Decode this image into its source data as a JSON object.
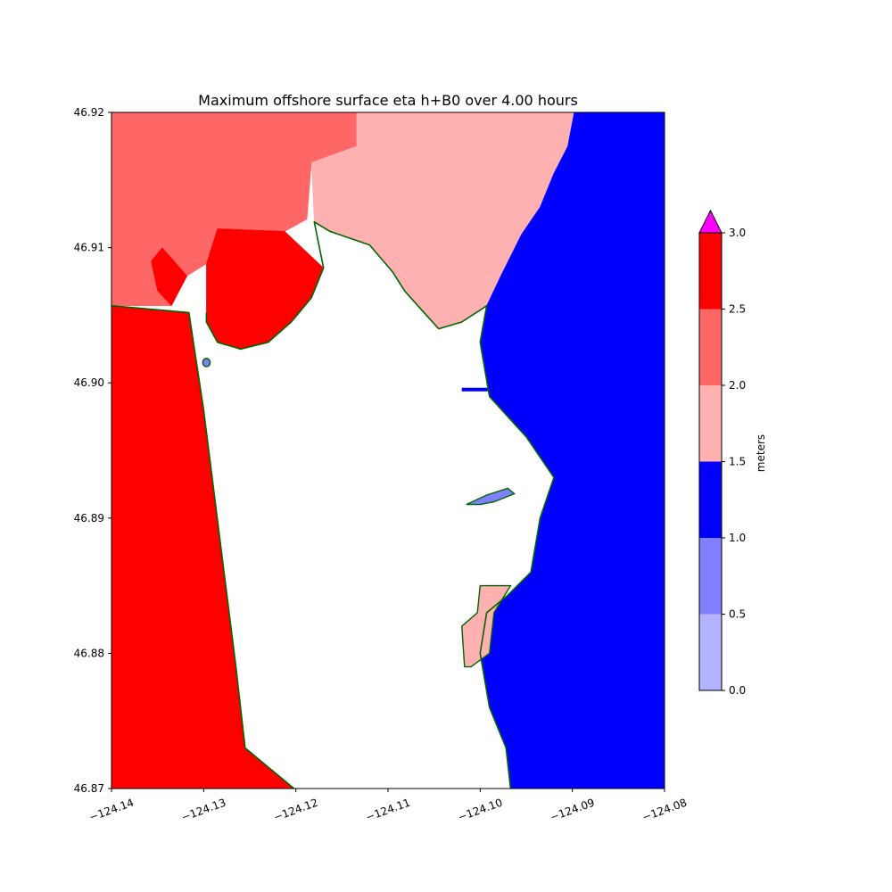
{
  "chart_data": {
    "type": "heatmap",
    "title": "Maximum offshore surface eta h+B0 over 4.00 hours",
    "xlabel": "",
    "ylabel": "",
    "xlim": [
      -124.14,
      -124.08
    ],
    "ylim": [
      46.87,
      46.92
    ],
    "x_ticks": [
      -124.14,
      -124.13,
      -124.12,
      -124.11,
      -124.1,
      -124.09,
      -124.08
    ],
    "x_tick_labels": [
      "−124.14",
      "−124.13",
      "−124.12",
      "−124.11",
      "−124.10",
      "−124.09",
      "−124.08"
    ],
    "y_ticks": [
      46.87,
      46.88,
      46.89,
      46.9,
      46.91,
      46.92
    ],
    "y_tick_labels": [
      "46.87",
      "46.88",
      "46.89",
      "46.90",
      "46.91",
      "46.92"
    ],
    "colorbar": {
      "label": "meters",
      "levels": [
        0.0,
        0.5,
        1.0,
        1.5,
        2.0,
        2.5,
        3.0
      ],
      "level_labels": [
        "0.0",
        "0.5",
        "1.0",
        "1.5",
        "2.0",
        "2.5",
        "3.0"
      ],
      "colors": [
        "#b3b3ff",
        "#8080ff",
        "#0000ff",
        "#ffb0b0",
        "#ff6666",
        "#ff0000"
      ],
      "extend_max_color": "#ff00ff"
    },
    "shoreline_color": "#006400",
    "regions": [
      {
        "class": "2.0-2.5",
        "color": "#ff6666",
        "polygon": [
          [
            -124.14,
            46.92
          ],
          [
            -124.1134,
            46.92
          ],
          [
            -124.1134,
            46.9175
          ],
          [
            -124.1183,
            46.9163
          ],
          [
            -124.1188,
            46.9121
          ],
          [
            -124.1212,
            46.9112
          ],
          [
            -124.1285,
            46.9114
          ],
          [
            -124.1297,
            46.9088
          ],
          [
            -124.1318,
            46.9079
          ],
          [
            -124.1335,
            46.9057
          ],
          [
            -124.14,
            46.9057
          ]
        ]
      },
      {
        "class": "1.5-2.0",
        "color": "#ffb0b0",
        "polygon": [
          [
            -124.1134,
            46.92
          ],
          [
            -124.0898,
            46.92
          ],
          [
            -124.0905,
            46.9175
          ],
          [
            -124.092,
            46.9155
          ],
          [
            -124.0935,
            46.913
          ],
          [
            -124.0955,
            46.911
          ],
          [
            -124.0977,
            46.908
          ],
          [
            -124.0993,
            46.9057
          ],
          [
            -124.102,
            46.9045
          ],
          [
            -124.1045,
            46.904
          ],
          [
            -124.1065,
            46.9055
          ],
          [
            -124.1082,
            46.9068
          ],
          [
            -124.1095,
            46.9082
          ],
          [
            -124.112,
            46.9102
          ],
          [
            -124.1163,
            46.9112
          ],
          [
            -124.118,
            46.9119
          ],
          [
            -124.1183,
            46.9163
          ],
          [
            -124.1134,
            46.9175
          ]
        ]
      },
      {
        "class": "2.5-3.0",
        "color": "#ff0000",
        "polygon": [
          [
            -124.1297,
            46.9088
          ],
          [
            -124.1285,
            46.9114
          ],
          [
            -124.1212,
            46.9112
          ],
          [
            -124.117,
            46.9085
          ],
          [
            -124.1183,
            46.9063
          ],
          [
            -124.1205,
            46.9045
          ],
          [
            -124.123,
            46.903
          ],
          [
            -124.126,
            46.9025
          ],
          [
            -124.1285,
            46.903
          ],
          [
            -124.1297,
            46.9045
          ]
        ]
      },
      {
        "class": "2.5-3.0",
        "color": "#ff0000",
        "polygon": [
          [
            -124.1332,
            46.909
          ],
          [
            -124.1318,
            46.9079
          ],
          [
            -124.1335,
            46.9057
          ],
          [
            -124.135,
            46.9068
          ],
          [
            -124.1357,
            46.909
          ],
          [
            -124.1345,
            46.91
          ]
        ]
      },
      {
        "class": "2.5-3.0",
        "color": "#ff0000",
        "polygon": [
          [
            -124.14,
            46.9057
          ],
          [
            -124.1316,
            46.9052
          ],
          [
            -124.13,
            46.898
          ],
          [
            -124.1265,
            46.879
          ],
          [
            -124.1255,
            46.873
          ],
          [
            -124.1202,
            46.87
          ],
          [
            -124.14,
            46.87
          ]
        ]
      },
      {
        "class": "1.0-1.5",
        "color": "#0000ff",
        "polygon": [
          [
            -124.0898,
            46.92
          ],
          [
            -124.08,
            46.92
          ],
          [
            -124.08,
            46.87
          ],
          [
            -124.0967,
            46.87
          ],
          [
            -124.0972,
            46.873
          ],
          [
            -124.099,
            46.876
          ],
          [
            -124.1,
            46.88
          ],
          [
            -124.0993,
            46.883
          ],
          [
            -124.097,
            46.8843
          ],
          [
            -124.0945,
            46.886
          ],
          [
            -124.0935,
            46.89
          ],
          [
            -124.092,
            46.893
          ],
          [
            -124.095,
            46.896
          ],
          [
            -124.099,
            46.899
          ],
          [
            -124.1,
            46.903
          ],
          [
            -124.0993,
            46.9057
          ],
          [
            -124.0977,
            46.908
          ],
          [
            -124.0955,
            46.911
          ],
          [
            -124.0935,
            46.913
          ],
          [
            -124.092,
            46.9155
          ],
          [
            -124.0905,
            46.9175
          ]
        ]
      },
      {
        "class": "1.5-2.0",
        "color": "#ffb0b0",
        "polygon": [
          [
            -124.0967,
            46.885
          ],
          [
            -124.0988,
            46.885
          ],
          [
            -124.1,
            46.885
          ],
          [
            -124.1003,
            46.883
          ],
          [
            -124.102,
            46.882
          ],
          [
            -124.1017,
            46.879
          ],
          [
            -124.101,
            46.879
          ],
          [
            -124.099,
            46.88
          ],
          [
            -124.0985,
            46.883
          ]
        ]
      },
      {
        "class": "0.5-1.0",
        "color": "#8080ff",
        "polygon": [
          [
            -124.1015,
            46.891
          ],
          [
            -124.0993,
            46.8917
          ],
          [
            -124.097,
            46.8922
          ],
          [
            -124.0963,
            46.8918
          ],
          [
            -124.0985,
            46.8912
          ],
          [
            -124.1,
            46.891
          ]
        ]
      }
    ],
    "shoreline_paths": [
      [
        [
          -124.14,
          46.9057
        ],
        [
          -124.1316,
          46.9052
        ],
        [
          -124.13,
          46.898
        ],
        [
          -124.1265,
          46.879
        ],
        [
          -124.1255,
          46.873
        ],
        [
          -124.1202,
          46.87
        ]
      ],
      [
        [
          -124.1297,
          46.9052
        ],
        [
          -124.1297,
          46.9045
        ],
        [
          -124.1285,
          46.903
        ],
        [
          -124.126,
          46.9025
        ],
        [
          -124.123,
          46.903
        ],
        [
          -124.1205,
          46.9045
        ],
        [
          -124.1183,
          46.9063
        ],
        [
          -124.117,
          46.9085
        ],
        [
          -124.118,
          46.9119
        ],
        [
          -124.1163,
          46.9112
        ],
        [
          -124.112,
          46.9102
        ],
        [
          -124.1095,
          46.9082
        ],
        [
          -124.1082,
          46.9068
        ],
        [
          -124.1065,
          46.9055
        ],
        [
          -124.1045,
          46.904
        ],
        [
          -124.102,
          46.9045
        ],
        [
          -124.0993,
          46.9057
        ],
        [
          -124.1,
          46.903
        ],
        [
          -124.099,
          46.899
        ],
        [
          -124.095,
          46.896
        ],
        [
          -124.092,
          46.893
        ],
        [
          -124.0935,
          46.89
        ],
        [
          -124.0945,
          46.886
        ],
        [
          -124.097,
          46.8843
        ],
        [
          -124.0993,
          46.883
        ],
        [
          -124.1,
          46.88
        ],
        [
          -124.099,
          46.876
        ],
        [
          -124.0972,
          46.873
        ],
        [
          -124.0967,
          46.87
        ]
      ]
    ],
    "small_features": [
      {
        "type": "shoal",
        "color": "#8080ff",
        "center": [
          -124.1297,
          46.9015
        ],
        "radius": [
          0.0004,
          0.0003
        ]
      },
      {
        "type": "channel",
        "color": "#0000ff",
        "path": [
          [
            -124.102,
            46.8995
          ],
          [
            -124.099,
            46.8995
          ],
          [
            -124.0965,
            46.8997
          ]
        ]
      }
    ]
  }
}
